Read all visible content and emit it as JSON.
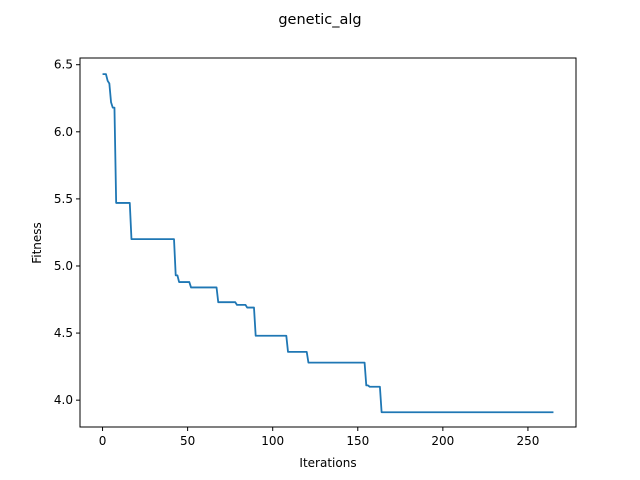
{
  "chart_data": {
    "type": "line",
    "title": "genetic_alg",
    "xlabel": "Iterations",
    "ylabel": "Fitness",
    "xlim": [
      -13.25,
      278.25
    ],
    "ylim": [
      3.8,
      6.55
    ],
    "xticks": [
      0,
      50,
      100,
      150,
      200,
      250
    ],
    "yticks": [
      4.0,
      4.5,
      5.0,
      5.5,
      6.0,
      6.5
    ],
    "ytick_labels": [
      "4.0",
      "4.5",
      "5.0",
      "5.5",
      "6.0",
      "6.5"
    ],
    "grid": false,
    "series": [
      {
        "color": "#1f77b4",
        "x": [
          0,
          1,
          2,
          3,
          4,
          5,
          6,
          7,
          8,
          16,
          17,
          42,
          43,
          44,
          45,
          51,
          52,
          67,
          68,
          78,
          79,
          84,
          85,
          89,
          90,
          108,
          109,
          120,
          121,
          154,
          155,
          156,
          157,
          160,
          161,
          163,
          164,
          265
        ],
        "y": [
          6.43,
          6.43,
          6.43,
          6.38,
          6.36,
          6.22,
          6.18,
          6.18,
          5.47,
          5.47,
          5.2,
          5.2,
          4.93,
          4.93,
          4.88,
          4.88,
          4.84,
          4.84,
          4.73,
          4.73,
          4.71,
          4.71,
          4.69,
          4.69,
          4.48,
          4.48,
          4.36,
          4.36,
          4.28,
          4.28,
          4.11,
          4.11,
          4.1,
          4.1,
          4.1,
          4.1,
          3.91,
          3.91
        ]
      }
    ]
  }
}
